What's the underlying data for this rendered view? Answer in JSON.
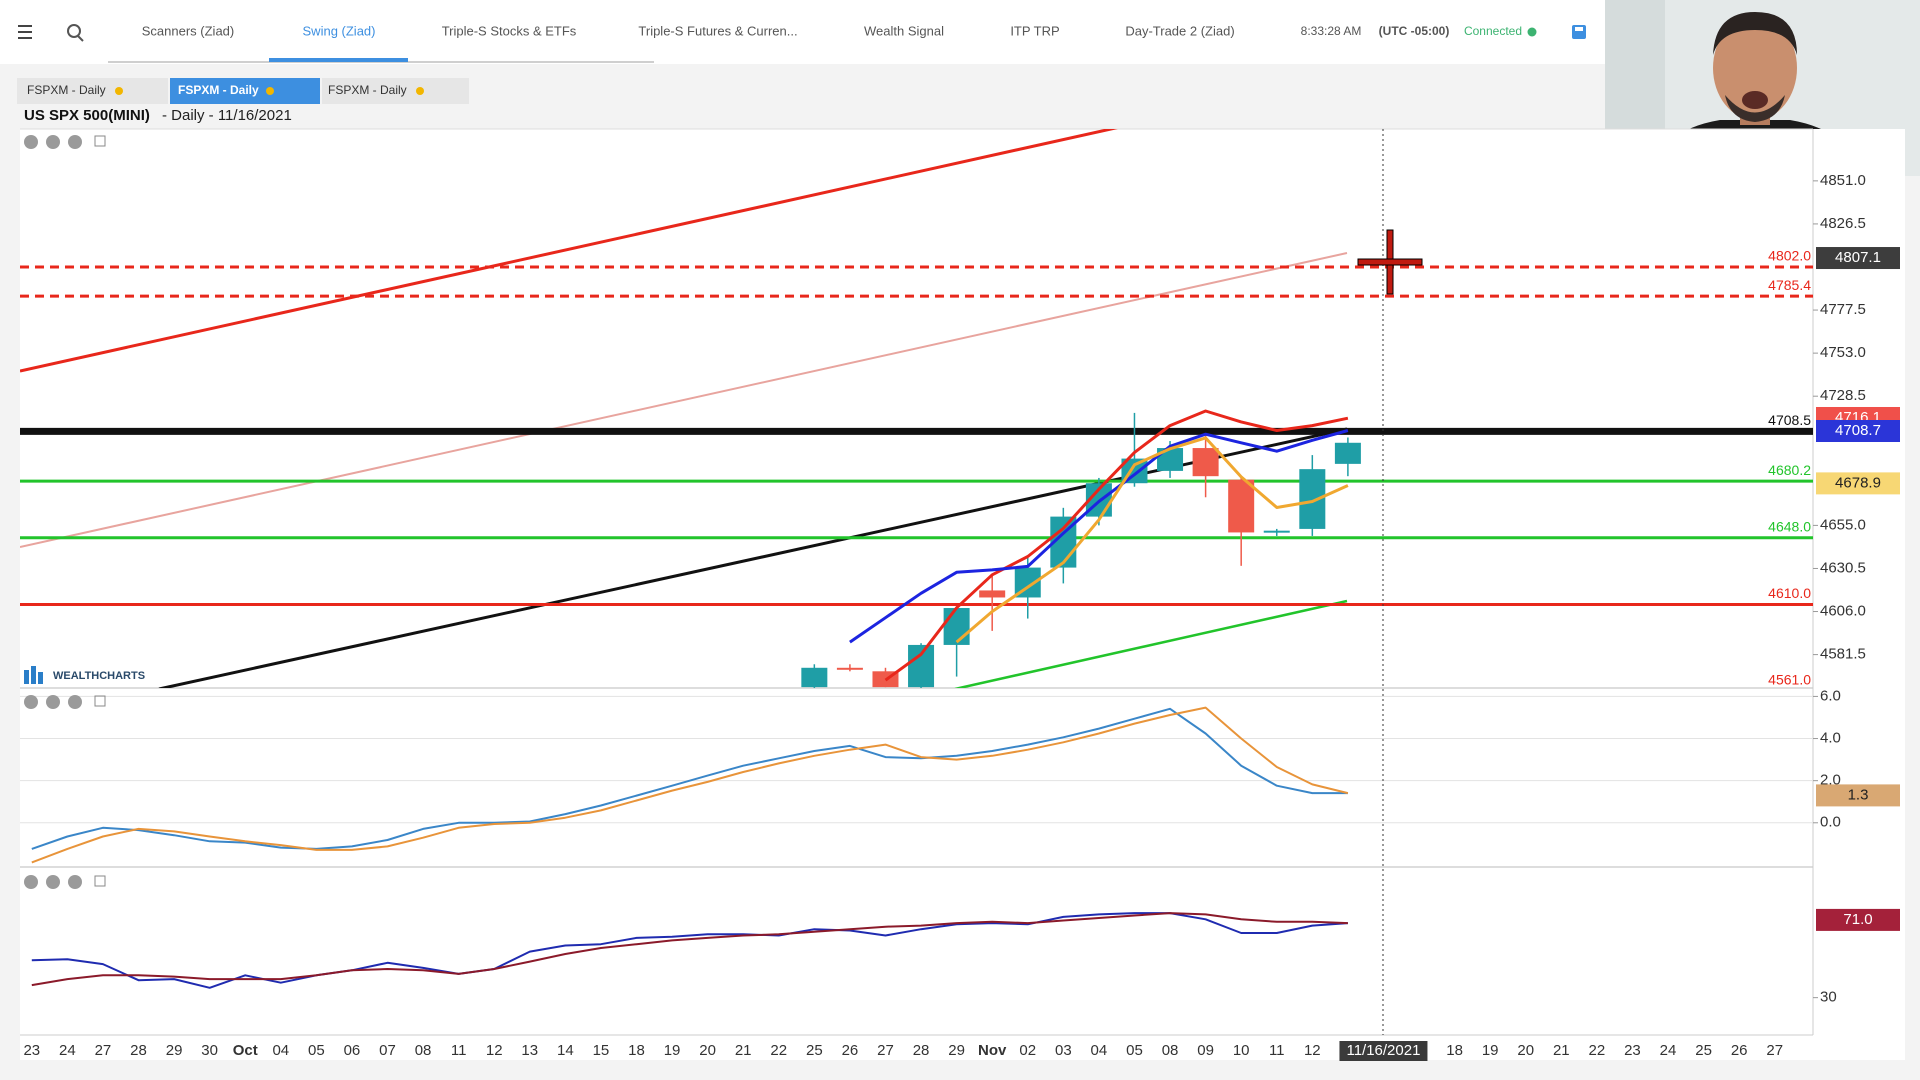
{
  "nav": {
    "tabs": [
      "Scanners (Ziad)",
      "Swing (Ziad)",
      "Triple-S Stocks & ETFs",
      "Triple-S Futures & Curren...",
      "Wealth Signal",
      "ITP TRP",
      "Day-Trade 2 (Ziad)"
    ],
    "time": "8:33:28 AM",
    "timezone": "(UTC -05:00)",
    "status": "Connected"
  },
  "subtabs": [
    "FSPXM - Daily",
    "FSPXM - Daily",
    "FSPXM - Daily"
  ],
  "logo": "WEALTHCHARTS",
  "chart_data": [
    {
      "type": "candlestick",
      "title": "US SPX 500(MINI)",
      "subtitle": "- Daily - 11/16/2021",
      "categories": [
        "23",
        "24",
        "27",
        "28",
        "29",
        "30",
        "Oct",
        "04",
        "05",
        "06",
        "07",
        "08",
        "11",
        "12",
        "13",
        "14",
        "15",
        "18",
        "19",
        "20",
        "21",
        "22",
        "25",
        "26",
        "27",
        "28",
        "29",
        "Nov",
        "02",
        "03",
        "04",
        "05",
        "08",
        "09",
        "10",
        "11",
        "12",
        null,
        "11/16/2021",
        null,
        "18",
        "19",
        "20",
        "21",
        "22",
        "23",
        "24",
        "25",
        "26",
        "27"
      ],
      "open": [
        null,
        null,
        null,
        null,
        null,
        null,
        null,
        null,
        null,
        null,
        null,
        null,
        null,
        null,
        null,
        null,
        null,
        null,
        null,
        null,
        null,
        null,
        4563,
        4574,
        4572,
        4563,
        4587,
        4618,
        4614,
        4631,
        4660,
        4679,
        4686,
        4699,
        4681,
        4651,
        4653,
        4690,
        null,
        null,
        null,
        null,
        null,
        null,
        null,
        null,
        null,
        null,
        null,
        null
      ],
      "high": [
        null,
        null,
        null,
        null,
        null,
        null,
        null,
        null,
        null,
        null,
        null,
        null,
        null,
        null,
        null,
        null,
        null,
        null,
        null,
        null,
        null,
        null,
        4576,
        4576,
        4574,
        4588,
        4609,
        4627,
        4637,
        4665,
        4682,
        4719,
        4703,
        4707,
        4683,
        4653,
        4695,
        4705,
        null,
        null,
        null,
        null,
        null,
        null,
        null,
        null,
        null,
        null,
        null,
        null
      ],
      "low": [
        null,
        null,
        null,
        null,
        null,
        null,
        null,
        null,
        null,
        null,
        null,
        null,
        null,
        null,
        null,
        null,
        null,
        null,
        null,
        null,
        null,
        null,
        4562,
        4572,
        4563,
        4562,
        4569,
        4595,
        4602,
        4622,
        4655,
        4677,
        4682,
        4671,
        4632,
        4649,
        4649,
        4683,
        null,
        null,
        null,
        null,
        null,
        null,
        null,
        null,
        null,
        null,
        null,
        null
      ],
      "close": [
        null,
        null,
        null,
        null,
        null,
        null,
        null,
        null,
        null,
        null,
        null,
        null,
        null,
        null,
        null,
        null,
        null,
        null,
        null,
        null,
        null,
        null,
        4574,
        4573,
        4563,
        4587,
        4608,
        4614,
        4631,
        4660,
        4679,
        4693,
        4699,
        4683,
        4651,
        4652,
        4687,
        4702,
        null,
        null,
        null,
        null,
        null,
        null,
        null,
        null,
        null,
        null,
        null,
        null
      ],
      "up_color": "#1f9ea6",
      "down_color": "#ef5a4a",
      "series": [
        {
          "color": "#e8271b",
          "values": [
            null,
            null,
            null,
            null,
            null,
            null,
            null,
            null,
            null,
            null,
            null,
            null,
            null,
            null,
            null,
            null,
            null,
            null,
            null,
            null,
            null,
            null,
            null,
            null,
            4567,
            4581.6,
            4608.1,
            4626.9,
            4637.3,
            4653.3,
            4675.6,
            4696.5,
            4711.8,
            4720.1,
            4713.9,
            4709,
            4711.8,
            4716,
            null,
            null,
            null,
            null,
            null,
            null,
            null,
            null,
            null,
            null,
            null,
            null
          ]
        },
        {
          "color": "#1c24e0",
          "values": [
            null,
            null,
            null,
            null,
            null,
            null,
            null,
            null,
            null,
            null,
            null,
            null,
            null,
            null,
            null,
            null,
            null,
            null,
            null,
            null,
            null,
            null,
            null,
            4588.6,
            4602.5,
            4616.4,
            4628.3,
            4629.7,
            4631.7,
            4650.5,
            4668.6,
            4683.9,
            4700,
            4706.9,
            4702,
            4697.2,
            4703.4,
            4709,
            null,
            null,
            null,
            null,
            null,
            null,
            null,
            null,
            null,
            null,
            null,
            null
          ]
        },
        {
          "color": "#f0a830",
          "values": [
            null,
            null,
            null,
            null,
            null,
            null,
            null,
            null,
            null,
            null,
            null,
            null,
            null,
            null,
            null,
            null,
            null,
            null,
            null,
            null,
            null,
            null,
            null,
            null,
            null,
            null,
            4588.6,
            4606,
            4619.9,
            4633.8,
            4658.2,
            4689.5,
            4698.6,
            4704.8,
            4682.6,
            4665.2,
            4668.6,
            4677.7,
            null,
            null,
            null,
            null,
            null,
            null,
            null,
            null,
            null,
            null,
            null,
            null
          ]
        }
      ],
      "levels": [
        {
          "value": 4802,
          "label": "4802.0",
          "color": "#e8271b",
          "style": "dashed"
        },
        {
          "value": 4785.4,
          "color": "#e8271b",
          "style": "dashed"
        },
        {
          "value": 4708.5,
          "color": "#111111",
          "style": "thick"
        },
        {
          "value": 4680.2,
          "color": "#22c42b",
          "style": "solid"
        },
        {
          "value": 4648,
          "label": "4648.0",
          "color": "#22c42b",
          "style": "solid"
        },
        {
          "value": 4610,
          "label": "4610.0",
          "color": "#e8271b",
          "style": "solid"
        },
        {
          "value": 4561,
          "label": "4561.0",
          "color": "#e8271b",
          "style": "solid"
        }
      ],
      "badges": [
        {
          "value": 4807.1,
          "color": "#3d3d3d"
        },
        {
          "value": 4716.1,
          "color": "#f0504a"
        },
        {
          "value": 4708.7,
          "color": "#2b35d8"
        },
        {
          "value": 4678.9,
          "color": "#f7d774",
          "text_color": "#222222"
        }
      ],
      "ylim": [
        4562.5,
        4880.5
      ],
      "yticks": [
        {
          "value": 4851,
          "label": "4851.0"
        },
        4826.5,
        4777.5,
        {
          "value": 4753,
          "label": "4753.0"
        },
        4728.5,
        {
          "value": 4655,
          "label": "4655.0"
        },
        4630.5,
        {
          "value": 4606,
          "label": "4606.0"
        },
        4581.5
      ],
      "grid": false
    },
    {
      "type": "line",
      "series": [
        {
          "color": "#3a86c8",
          "values": [
            -1.24,
            -0.65,
            -0.24,
            -0.35,
            -0.59,
            -0.88,
            -0.94,
            -1.18,
            -1.24,
            -1.12,
            -0.82,
            -0.29,
            0,
            0,
            0.06,
            0.41,
            0.82,
            1.29,
            1.76,
            2.24,
            2.71,
            3.06,
            3.41,
            3.65,
            3.12,
            3.06,
            3.18,
            3.41,
            3.71,
            4.06,
            4.47,
            4.94,
            5.41,
            4.24,
            2.71,
            1.76,
            1.41,
            1.41,
            null,
            null,
            null,
            null,
            null,
            null,
            null,
            null,
            null,
            null,
            null,
            null
          ]
        },
        {
          "color": "#e8943a",
          "values": [
            -1.88,
            -1.24,
            -0.65,
            -0.29,
            -0.41,
            -0.65,
            -0.88,
            -1.06,
            -1.29,
            -1.29,
            -1.12,
            -0.71,
            -0.24,
            -0.06,
            0,
            0.24,
            0.59,
            1.06,
            1.53,
            1.94,
            2.41,
            2.82,
            3.18,
            3.47,
            3.71,
            3.12,
            3.0,
            3.18,
            3.47,
            3.82,
            4.24,
            4.71,
            5.12,
            5.47,
            4.0,
            2.65,
            1.82,
            1.41,
            null,
            null,
            null,
            null,
            null,
            null,
            null,
            null,
            null,
            null,
            null,
            null
          ]
        }
      ],
      "badges": [
        {
          "value": 1.3,
          "color": "#d9a873",
          "text_color": "#222222"
        }
      ],
      "ylim": [
        -2.1,
        6.4
      ],
      "yticks": [
        {
          "value": 6,
          "label": "6.0"
        },
        {
          "value": 4,
          "label": "4.0"
        },
        {
          "value": 2,
          "label": "2.0"
        },
        {
          "value": 0,
          "label": "0.0"
        }
      ],
      "grid": true
    },
    {
      "type": "line",
      "series": [
        {
          "color": "#1f2bb0",
          "values": [
            49.7,
            50.3,
            47.7,
            39.2,
            39.8,
            35.2,
            41.8,
            37.9,
            41.8,
            44.4,
            48.4,
            45.7,
            42.5,
            45.1,
            54.3,
            57.5,
            58.2,
            61.5,
            62.1,
            63.4,
            63.4,
            62.8,
            66.1,
            65.4,
            62.8,
            66.1,
            68.7,
            69.3,
            68.7,
            72.6,
            73.9,
            74.6,
            74.6,
            71.3,
            64.1,
            64.1,
            68.0,
            69.3,
            null,
            null,
            null,
            null,
            null,
            null,
            null,
            null,
            null,
            null,
            null,
            null
          ]
        },
        {
          "color": "#8b1a2a",
          "values": [
            36.6,
            39.8,
            41.8,
            41.8,
            41.1,
            39.8,
            39.8,
            39.8,
            41.8,
            44.4,
            45.1,
            44.4,
            42.5,
            45.1,
            49.0,
            53.0,
            56.2,
            58.2,
            60.2,
            61.5,
            62.8,
            63.4,
            64.8,
            66.1,
            67.4,
            68.0,
            69.3,
            70,
            69.3,
            70.7,
            72.0,
            73.3,
            74.6,
            73.9,
            71.3,
            70,
            70,
            69.3,
            null,
            null,
            null,
            null,
            null,
            null,
            null,
            null,
            null,
            null,
            null,
            null
          ]
        }
      ],
      "badges": [
        {
          "value": 71,
          "label": "71.0",
          "color": "#a4213a"
        }
      ],
      "ylim": [
        10.3,
        98.9
      ],
      "yticks": [
        30
      ],
      "grid": false
    }
  ]
}
